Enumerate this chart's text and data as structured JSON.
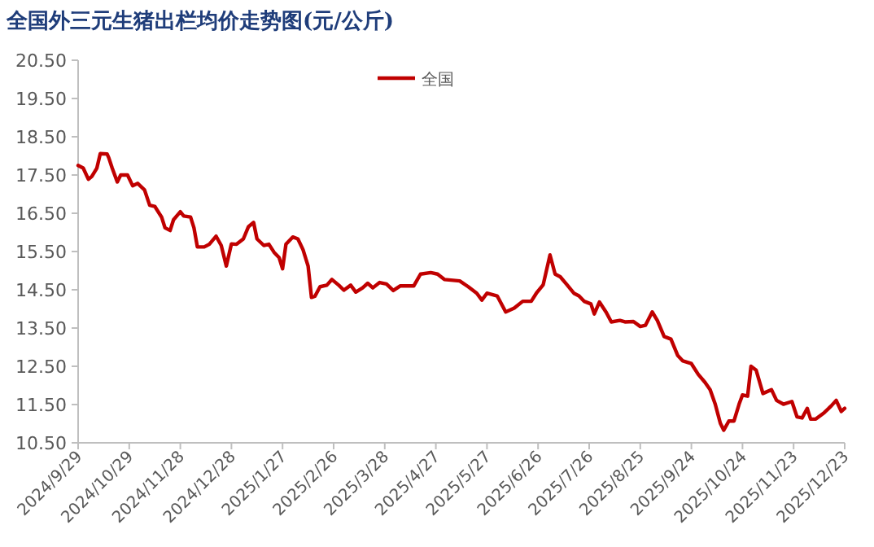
{
  "chart_data": {
    "type": "line",
    "title": "全国外三元生猪出栏均价走势图(元/公斤)",
    "legend": "top",
    "xlim": [
      "2024-09-29",
      "2025-12-23"
    ],
    "xticks": [
      {
        "value": "2024-09-29",
        "label": "2024/9/29"
      },
      {
        "value": "2024-10-29",
        "label": "2024/10/29"
      },
      {
        "value": "2024-11-28",
        "label": "2024/11/28"
      },
      {
        "value": "2024-12-28",
        "label": "2024/12/28"
      },
      {
        "value": "2025-01-27",
        "label": "2025/1/27"
      },
      {
        "value": "2025-02-26",
        "label": "2025/2/26"
      },
      {
        "value": "2025-03-28",
        "label": "2025/3/28"
      },
      {
        "value": "2025-04-27",
        "label": "2025/4/27"
      },
      {
        "value": "2025-05-27",
        "label": "2025/5/27"
      },
      {
        "value": "2025-06-26",
        "label": "2025/6/26"
      },
      {
        "value": "2025-07-26",
        "label": "2025/7/26"
      },
      {
        "value": "2025-08-25",
        "label": "2025/8/25"
      },
      {
        "value": "2025-09-24",
        "label": "2025/9/24"
      },
      {
        "value": "2025-10-24",
        "label": "2025/10/24"
      },
      {
        "value": "2025-11-23",
        "label": "2025/11/23"
      },
      {
        "value": "2025-12-23",
        "label": "2025/12/23"
      }
    ],
    "ylim": [
      10.5,
      20.5
    ],
    "yticks": [
      {
        "value": 10.5,
        "label": "10.50"
      },
      {
        "value": 11.5,
        "label": "11.50"
      },
      {
        "value": 12.5,
        "label": "12.50"
      },
      {
        "value": 13.5,
        "label": "13.50"
      },
      {
        "value": 14.5,
        "label": "14.50"
      },
      {
        "value": 15.5,
        "label": "15.50"
      },
      {
        "value": 16.5,
        "label": "16.50"
      },
      {
        "value": 17.5,
        "label": "17.50"
      },
      {
        "value": 18.5,
        "label": "18.50"
      },
      {
        "value": 19.5,
        "label": "19.50"
      },
      {
        "value": 20.5,
        "label": "20.50"
      }
    ],
    "x": [
      "2024-09-29",
      "2024-10-02",
      "2024-10-05",
      "2024-10-07",
      "2024-10-10",
      "2024-10-12",
      "2024-10-16",
      "2024-10-17",
      "2024-10-19",
      "2024-10-22",
      "2024-10-24",
      "2024-10-28",
      "2024-10-31",
      "2024-11-03",
      "2024-11-07",
      "2024-11-10",
      "2024-11-13",
      "2024-11-17",
      "2024-11-19",
      "2024-11-22",
      "2024-11-24",
      "2024-11-28",
      "2024-11-30",
      "2024-12-04",
      "2024-12-06",
      "2024-12-08",
      "2024-12-12",
      "2024-12-15",
      "2024-12-19",
      "2024-12-22",
      "2024-12-25",
      "2024-12-28",
      "2024-12-31",
      "2025-01-04",
      "2025-01-07",
      "2025-01-10",
      "2025-01-12",
      "2025-01-16",
      "2025-01-19",
      "2025-01-22",
      "2025-01-25",
      "2025-01-27",
      "2025-01-29",
      "2025-02-02",
      "2025-02-05",
      "2025-02-08",
      "2025-02-11",
      "2025-02-13",
      "2025-02-15",
      "2025-02-18",
      "2025-02-22",
      "2025-02-25",
      "2025-03-01",
      "2025-03-04",
      "2025-03-08",
      "2025-03-11",
      "2025-03-15",
      "2025-03-18",
      "2025-03-21",
      "2025-03-25",
      "2025-03-29",
      "2025-04-02",
      "2025-04-06",
      "2025-04-14",
      "2025-04-18",
      "2025-04-24",
      "2025-04-28",
      "2025-05-02",
      "2025-05-11",
      "2025-05-16",
      "2025-05-21",
      "2025-05-24",
      "2025-05-27",
      "2025-06-02",
      "2025-06-07",
      "2025-06-12",
      "2025-06-17",
      "2025-06-22",
      "2025-06-25",
      "2025-06-29",
      "2025-07-03",
      "2025-07-06",
      "2025-07-09",
      "2025-07-13",
      "2025-07-17",
      "2025-07-20",
      "2025-07-23",
      "2025-07-27",
      "2025-07-29",
      "2025-08-01",
      "2025-08-05",
      "2025-08-08",
      "2025-08-13",
      "2025-08-16",
      "2025-08-21",
      "2025-08-25",
      "2025-08-28",
      "2025-09-01",
      "2025-09-04",
      "2025-09-08",
      "2025-09-12",
      "2025-09-16",
      "2025-09-19",
      "2025-09-24",
      "2025-09-28",
      "2025-10-02",
      "2025-10-05",
      "2025-10-08",
      "2025-10-11",
      "2025-10-13",
      "2025-10-16",
      "2025-10-19",
      "2025-10-22",
      "2025-10-24",
      "2025-10-27",
      "2025-10-29",
      "2025-11-01",
      "2025-11-05",
      "2025-11-10",
      "2025-11-13",
      "2025-11-17",
      "2025-11-22",
      "2025-11-25",
      "2025-11-28",
      "2025-12-01",
      "2025-12-03",
      "2025-12-06",
      "2025-12-11",
      "2025-12-15",
      "2025-12-18",
      "2025-12-21",
      "2025-12-23"
    ],
    "series": [
      {
        "name": "全国",
        "color": "#c00000",
        "values": [
          17.75,
          17.68,
          17.39,
          17.46,
          17.68,
          18.06,
          18.05,
          17.95,
          17.68,
          17.32,
          17.5,
          17.5,
          17.22,
          17.28,
          17.11,
          16.71,
          16.68,
          16.4,
          16.12,
          16.05,
          16.33,
          16.54,
          16.43,
          16.4,
          16.12,
          15.62,
          15.62,
          15.69,
          15.9,
          15.66,
          15.12,
          15.7,
          15.69,
          15.83,
          16.15,
          16.26,
          15.83,
          15.66,
          15.69,
          15.48,
          15.34,
          15.05,
          15.69,
          15.88,
          15.83,
          15.55,
          15.12,
          14.3,
          14.33,
          14.58,
          14.62,
          14.77,
          14.62,
          14.49,
          14.62,
          14.44,
          14.55,
          14.67,
          14.55,
          14.69,
          14.65,
          14.48,
          14.6,
          14.6,
          14.91,
          14.95,
          14.91,
          14.77,
          14.73,
          14.58,
          14.41,
          14.23,
          14.41,
          14.34,
          13.92,
          14.02,
          14.2,
          14.2,
          14.41,
          14.63,
          15.41,
          14.91,
          14.84,
          14.63,
          14.41,
          14.34,
          14.2,
          14.13,
          13.87,
          14.18,
          13.91,
          13.66,
          13.7,
          13.66,
          13.67,
          13.54,
          13.57,
          13.92,
          13.7,
          13.28,
          13.21,
          12.78,
          12.64,
          12.57,
          12.29,
          12.08,
          11.89,
          11.51,
          11.01,
          10.83,
          11.07,
          11.07,
          11.51,
          11.75,
          11.72,
          12.5,
          12.4,
          11.79,
          11.89,
          11.61,
          11.51,
          11.58,
          11.18,
          11.15,
          11.4,
          11.12,
          11.12,
          11.29,
          11.46,
          11.61,
          11.32,
          11.4
        ]
      }
    ]
  }
}
